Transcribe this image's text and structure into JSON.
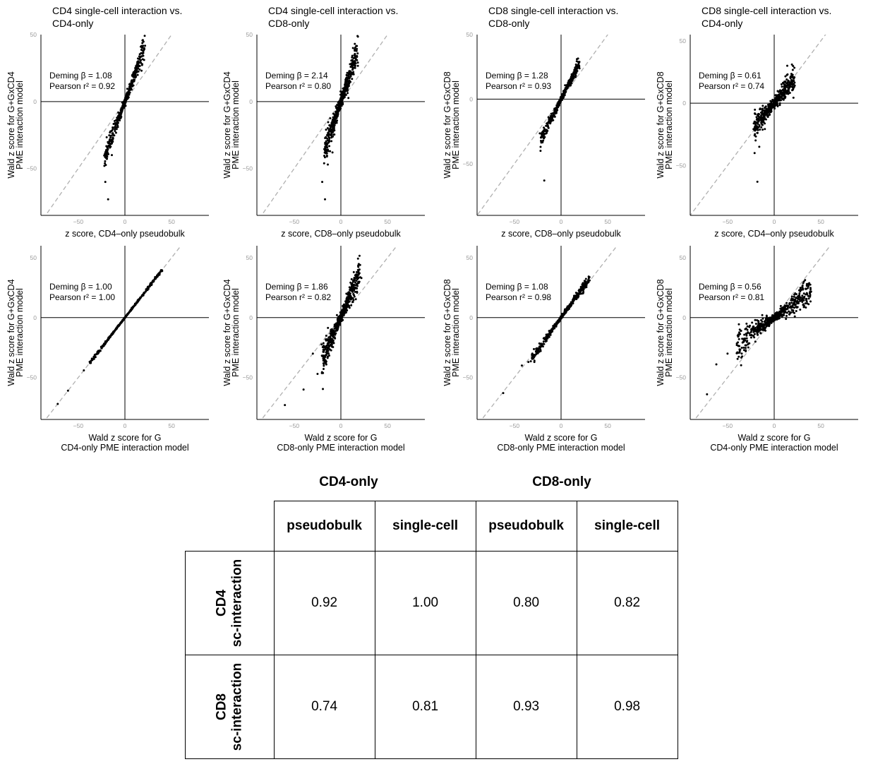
{
  "chart_data": [
    {
      "type": "scatter",
      "panel": "row1-col1",
      "title": [
        "CD4 single-cell interaction vs.",
        "CD4-only"
      ],
      "ylabel": [
        "Wald z score for G+GxCD4",
        "PME interaction model"
      ],
      "xlabel": [
        "z score, CD4–only pseudobulk"
      ],
      "annotation": [
        "Deming β = 1.08",
        "Pearson r² = 0.92"
      ],
      "deming_beta": 1.08,
      "pearson_r2": 0.92,
      "xlim": [
        -90,
        90
      ],
      "ylim": [
        -85,
        50
      ],
      "xticks": [
        -50,
        0,
        50
      ],
      "yticks": [
        -50,
        0,
        50
      ],
      "ytick_labels": [
        "−50",
        "0",
        "50"
      ],
      "xtick_labels": [
        "−50",
        "0",
        "50"
      ],
      "identity_line": true,
      "point_cloud": {
        "slope": 1.9,
        "x_range": [
          -22,
          22
        ],
        "noise": 3.5,
        "count": 420
      },
      "outliers": [
        [
          -22,
          -48
        ],
        [
          -21,
          -60
        ],
        [
          -18,
          -73
        ],
        [
          -14,
          -40
        ],
        [
          20,
          38
        ],
        [
          17,
          41
        ]
      ]
    },
    {
      "type": "scatter",
      "panel": "row1-col2",
      "title": [
        "CD4 single-cell interaction vs.",
        "CD8-only"
      ],
      "ylabel": [
        "Wald z score for G+GxCD4",
        "PME interaction model"
      ],
      "xlabel": [
        "z score, CD8–only pseudobulk"
      ],
      "annotation": [
        "Deming β = 2.14",
        "Pearson r² = 0.80"
      ],
      "deming_beta": 2.14,
      "pearson_r2": 0.8,
      "xlim": [
        -90,
        90
      ],
      "ylim": [
        -85,
        50
      ],
      "xticks": [
        -50,
        0,
        50
      ],
      "yticks": [
        -50,
        0,
        50
      ],
      "ytick_labels": [
        "−50",
        "0",
        "50"
      ],
      "xtick_labels": [
        "−50",
        "0",
        "50"
      ],
      "identity_line": true,
      "point_cloud": {
        "slope": 2.1,
        "x_range": [
          -18,
          18
        ],
        "noise": 6,
        "count": 520
      },
      "outliers": [
        [
          -20,
          -60
        ],
        [
          -17,
          -73
        ],
        [
          -14,
          -47
        ],
        [
          -9,
          -38
        ],
        [
          16,
          38
        ],
        [
          13,
          40
        ]
      ]
    },
    {
      "type": "scatter",
      "panel": "row1-col3",
      "title": [
        "CD8 single-cell interaction vs.",
        "CD8-only"
      ],
      "ylabel": [
        "Wald z score for G+GxCD8",
        "PME interaction model"
      ],
      "xlabel": [
        "z score, CD8–only pseudobulk"
      ],
      "annotation": [
        "Deming β = 1.28",
        "Pearson r² = 0.93"
      ],
      "deming_beta": 1.28,
      "pearson_r2": 0.93,
      "xlim": [
        -90,
        90
      ],
      "ylim": [
        -90,
        50
      ],
      "xticks": [
        -50,
        0,
        50
      ],
      "yticks": [
        -50,
        0,
        50
      ],
      "ytick_labels": [
        "−50",
        "0",
        "50"
      ],
      "xtick_labels": [
        "−50",
        "0",
        "50"
      ],
      "identity_line": true,
      "point_cloud": {
        "slope": 1.45,
        "x_range": [
          -22,
          20
        ],
        "noise": 2.5,
        "count": 360
      },
      "outliers": [
        [
          -18,
          -63
        ],
        [
          -22,
          -40
        ],
        [
          -20,
          -33
        ],
        [
          17,
          31
        ],
        [
          19,
          28
        ]
      ]
    },
    {
      "type": "scatter",
      "panel": "row1-col4",
      "title": [
        "CD8 single-cell interaction vs.",
        "CD4-only"
      ],
      "ylabel": [
        "Wald z score for G+GxCD8",
        "PME interaction model"
      ],
      "xlabel": [
        "z score, CD4–only pseudobulk"
      ],
      "annotation": [
        "Deming β = 0.61",
        "Pearson r² = 0.74"
      ],
      "deming_beta": 0.61,
      "pearson_r2": 0.74,
      "xlim": [
        -90,
        90
      ],
      "ylim": [
        -90,
        55
      ],
      "xticks": [
        -50,
        0,
        50
      ],
      "yticks": [
        -50,
        0,
        50
      ],
      "ytick_labels": [
        "−50",
        "0",
        "50"
      ],
      "xtick_labels": [
        "−50",
        "0",
        "50"
      ],
      "identity_line": true,
      "point_cloud": {
        "slope": 0.9,
        "x_range": [
          -22,
          22
        ],
        "noise": 5,
        "count": 460
      },
      "outliers": [
        [
          -18,
          -63
        ],
        [
          -21,
          -40
        ],
        [
          -16,
          -35
        ],
        [
          19,
          31
        ],
        [
          14,
          30
        ]
      ]
    },
    {
      "type": "scatter",
      "panel": "row2-col1",
      "ylabel": [
        "Wald z score for G+GxCD4",
        "PME interaction model"
      ],
      "xlabel": [
        "Wald z score for G",
        "CD4-only PME interaction model"
      ],
      "annotation": [
        "Deming β = 1.00",
        "Pearson r² = 1.00"
      ],
      "deming_beta": 1.0,
      "pearson_r2": 1.0,
      "xlim": [
        -90,
        90
      ],
      "ylim": [
        -85,
        60
      ],
      "xticks": [
        -50,
        0,
        50
      ],
      "yticks": [
        -50,
        0,
        50
      ],
      "ytick_labels": [
        "−50",
        "0",
        "50"
      ],
      "xtick_labels": [
        "−50",
        "0",
        "50"
      ],
      "identity_line": true,
      "point_cloud": {
        "slope": 1.0,
        "x_range": [
          -38,
          40
        ],
        "noise": 0.4,
        "count": 420
      },
      "outliers": [
        [
          -72,
          -72
        ],
        [
          -61,
          -61
        ],
        [
          -44,
          -44
        ]
      ]
    },
    {
      "type": "scatter",
      "panel": "row2-col2",
      "ylabel": [
        "Wald z score for G+GxCD4",
        "PME interaction model"
      ],
      "xlabel": [
        "Wald z score for G",
        "CD8-only PME interaction model"
      ],
      "annotation": [
        "Deming β = 1.86",
        "Pearson r² = 0.82"
      ],
      "deming_beta": 1.86,
      "pearson_r2": 0.82,
      "xlim": [
        -90,
        90
      ],
      "ylim": [
        -85,
        60
      ],
      "xticks": [
        -50,
        0,
        50
      ],
      "yticks": [
        -50,
        0,
        50
      ],
      "ytick_labels": [
        "−50",
        "0",
        "50"
      ],
      "xtick_labels": [
        "−50",
        "0",
        "50"
      ],
      "identity_line": true,
      "point_cloud": {
        "slope": 1.85,
        "x_range": [
          -20,
          20
        ],
        "noise": 6,
        "count": 520
      },
      "outliers": [
        [
          -60,
          -73
        ],
        [
          -40,
          -60
        ],
        [
          -25,
          -47
        ],
        [
          -30,
          -30
        ],
        [
          17,
          38
        ],
        [
          22,
          33
        ]
      ]
    },
    {
      "type": "scatter",
      "panel": "row2-col3",
      "ylabel": [
        "Wald z score for G+GxCD8",
        "PME interaction model"
      ],
      "xlabel": [
        "Wald z score for G",
        "CD8-only PME interaction model"
      ],
      "annotation": [
        "Deming β = 1.08",
        "Pearson r² = 0.98"
      ],
      "deming_beta": 1.08,
      "pearson_r2": 0.98,
      "xlim": [
        -90,
        90
      ],
      "ylim": [
        -85,
        60
      ],
      "xticks": [
        -50,
        0,
        50
      ],
      "yticks": [
        -50,
        0,
        50
      ],
      "ytick_labels": [
        "−50",
        "0",
        "50"
      ],
      "xtick_labels": [
        "−50",
        "0",
        "50"
      ],
      "identity_line": true,
      "point_cloud": {
        "slope": 1.08,
        "x_range": [
          -32,
          30
        ],
        "noise": 1.5,
        "count": 420
      },
      "outliers": [
        [
          -62,
          -63
        ],
        [
          -42,
          -40
        ],
        [
          -35,
          -37
        ]
      ]
    },
    {
      "type": "scatter",
      "panel": "row2-col4",
      "ylabel": [
        "Wald z score for G+GxCD8",
        "PME interaction model"
      ],
      "xlabel": [
        "Wald z score for G",
        "CD4-only PME interaction model"
      ],
      "annotation": [
        "Deming β = 0.56",
        "Pearson r² = 0.81"
      ],
      "deming_beta": 0.56,
      "pearson_r2": 0.81,
      "xlim": [
        -90,
        90
      ],
      "ylim": [
        -85,
        60
      ],
      "xticks": [
        -50,
        0,
        50
      ],
      "yticks": [
        -50,
        0,
        50
      ],
      "ytick_labels": [
        "−50",
        "0",
        "50"
      ],
      "xtick_labels": [
        "−50",
        "0",
        "50"
      ],
      "identity_line": true,
      "point_cloud": {
        "slope": 0.55,
        "x_range": [
          -40,
          40
        ],
        "noise": 3.5,
        "count": 560
      },
      "outliers": [
        [
          -72,
          -64
        ],
        [
          -62,
          -39
        ],
        [
          -50,
          -30
        ],
        [
          30,
          25
        ],
        [
          35,
          28
        ]
      ]
    },
    {
      "type": "table",
      "column_groups": [
        "CD4-only",
        "CD8-only"
      ],
      "columns": [
        "pseudobulk",
        "single-cell",
        "pseudobulk",
        "single-cell"
      ],
      "rows": [
        {
          "label": [
            "CD4",
            "sc-interaction"
          ],
          "values": [
            "0.92",
            "1.00",
            "0.80",
            "0.82"
          ]
        },
        {
          "label": [
            "CD8",
            "sc-interaction"
          ],
          "values": [
            "0.74",
            "0.81",
            "0.93",
            "0.98"
          ]
        }
      ]
    }
  ]
}
